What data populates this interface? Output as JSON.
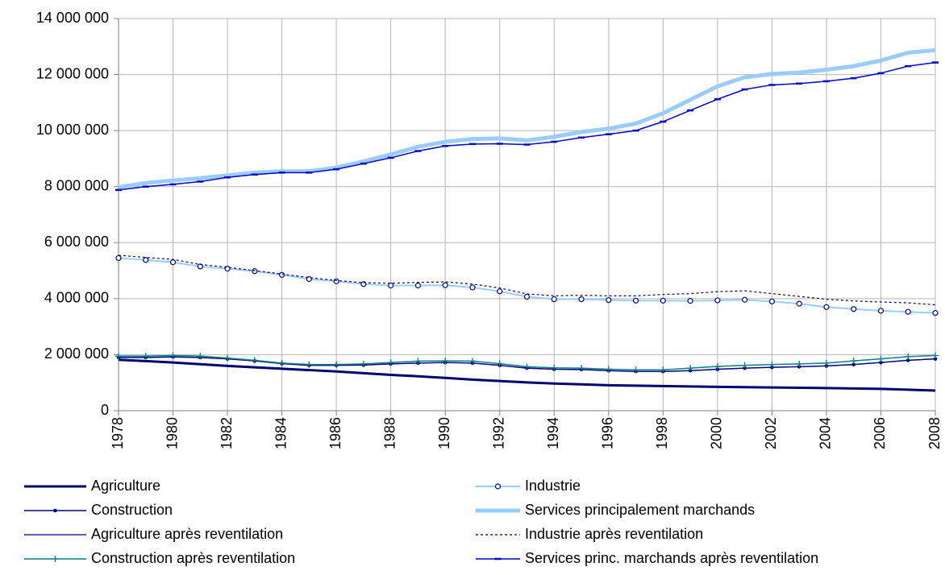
{
  "chart_data": {
    "type": "line",
    "x": [
      1978,
      1979,
      1980,
      1981,
      1982,
      1983,
      1984,
      1985,
      1986,
      1987,
      1988,
      1989,
      1990,
      1991,
      1992,
      1993,
      1994,
      1995,
      1996,
      1997,
      1998,
      1999,
      2000,
      2001,
      2002,
      2003,
      2004,
      2005,
      2006,
      2007,
      2008
    ],
    "xlim": [
      1978,
      2008
    ],
    "xticks": [
      1978,
      1980,
      1982,
      1984,
      1986,
      1988,
      1990,
      1992,
      1994,
      1996,
      1998,
      2000,
      2002,
      2004,
      2006,
      2008
    ],
    "ylim": [
      0,
      14000000
    ],
    "yticks": [
      0,
      {
        "value": 2000000,
        "label": "2 000 000"
      },
      {
        "value": 4000000,
        "label": "4 000 000"
      },
      {
        "value": 6000000,
        "label": "6 000 000"
      },
      {
        "value": 8000000,
        "label": "8 000 000"
      },
      {
        "value": 10000000,
        "label": "10 000 000"
      },
      {
        "value": 12000000,
        "label": "12 000 000"
      },
      {
        "value": 14000000,
        "label": "14 000 000"
      }
    ],
    "grid": true,
    "legend": "bottom",
    "series": [
      {
        "name": "Agriculture",
        "color": "#000066",
        "line_width": 3,
        "marker": "none",
        "dash": "solid",
        "values": [
          1820000,
          1770000,
          1720000,
          1660000,
          1600000,
          1550000,
          1500000,
          1450000,
          1400000,
          1340000,
          1280000,
          1230000,
          1170000,
          1110000,
          1060000,
          1010000,
          970000,
          940000,
          910000,
          895000,
          880000,
          865000,
          850000,
          840000,
          830000,
          820000,
          810000,
          795000,
          780000,
          750000,
          720000
        ]
      },
      {
        "name": "Industrie",
        "color": "#99ccff",
        "line_width": 2,
        "marker": "circle",
        "dash": "solid",
        "values": [
          5450000,
          5380000,
          5300000,
          5150000,
          5070000,
          4980000,
          4850000,
          4700000,
          4620000,
          4520000,
          4470000,
          4470000,
          4480000,
          4400000,
          4260000,
          4070000,
          3980000,
          3980000,
          3950000,
          3930000,
          3930000,
          3920000,
          3940000,
          3960000,
          3900000,
          3820000,
          3700000,
          3630000,
          3570000,
          3530000,
          3490000
        ]
      },
      {
        "name": "Construction",
        "color": "#000080",
        "line_width": 1.5,
        "marker": "dot",
        "dash": "solid",
        "values": [
          1900000,
          1900000,
          1920000,
          1900000,
          1850000,
          1780000,
          1680000,
          1620000,
          1620000,
          1630000,
          1670000,
          1700000,
          1720000,
          1700000,
          1620000,
          1520000,
          1480000,
          1470000,
          1430000,
          1400000,
          1400000,
          1430000,
          1480000,
          1520000,
          1550000,
          1570000,
          1600000,
          1650000,
          1720000,
          1800000,
          1850000
        ]
      },
      {
        "name": "Services principalement marchands",
        "color": "#99ccff",
        "line_width": 5,
        "marker": "none",
        "dash": "solid",
        "values": [
          7980000,
          8130000,
          8220000,
          8300000,
          8400000,
          8500000,
          8550000,
          8550000,
          8680000,
          8900000,
          9150000,
          9420000,
          9600000,
          9700000,
          9720000,
          9650000,
          9780000,
          9950000,
          10070000,
          10250000,
          10620000,
          11100000,
          11580000,
          11900000,
          12020000,
          12070000,
          12170000,
          12300000,
          12500000,
          12780000,
          12870000
        ]
      },
      {
        "name": "Agriculture après reventilation",
        "color": "#000080",
        "line_width": 1.2,
        "marker": "none",
        "dash": "solid",
        "values": [
          1840000,
          1790000,
          1740000,
          1680000,
          1620000,
          1570000,
          1520000,
          1460000,
          1410000,
          1350000,
          1290000,
          1240000,
          1180000,
          1120000,
          1070000,
          1020000,
          980000,
          950000,
          920000,
          900000,
          885000,
          870000,
          855000,
          845000,
          835000,
          825000,
          815000,
          800000,
          785000,
          755000,
          725000
        ]
      },
      {
        "name": "Industrie après reventilation",
        "color": "#000080",
        "line_width": 1.2,
        "marker": "none",
        "dash": "dot",
        "values": [
          5550000,
          5470000,
          5400000,
          5220000,
          5120000,
          5000000,
          4880000,
          4750000,
          4650000,
          4570000,
          4550000,
          4580000,
          4600000,
          4520000,
          4380000,
          4170000,
          4100000,
          4120000,
          4100000,
          4100000,
          4150000,
          4180000,
          4250000,
          4280000,
          4180000,
          4080000,
          3980000,
          3920000,
          3880000,
          3850000,
          3780000
        ]
      },
      {
        "name": "Construction après reventilation",
        "color": "#008080",
        "line_width": 1.5,
        "marker": "plus",
        "dash": "solid",
        "values": [
          1950000,
          1950000,
          1970000,
          1950000,
          1880000,
          1800000,
          1700000,
          1650000,
          1650000,
          1670000,
          1720000,
          1770000,
          1780000,
          1770000,
          1680000,
          1570000,
          1530000,
          1520000,
          1480000,
          1460000,
          1460000,
          1520000,
          1580000,
          1620000,
          1650000,
          1670000,
          1700000,
          1780000,
          1850000,
          1930000,
          1970000
        ]
      },
      {
        "name": "Services princ. marchands après reventilation",
        "color": "#0000cc",
        "line_width": 1.5,
        "marker": "dash",
        "dash": "solid",
        "values": [
          7880000,
          8000000,
          8080000,
          8180000,
          8330000,
          8430000,
          8500000,
          8500000,
          8620000,
          8820000,
          9030000,
          9270000,
          9450000,
          9520000,
          9530000,
          9500000,
          9600000,
          9750000,
          9870000,
          10000000,
          10320000,
          10720000,
          11120000,
          11470000,
          11630000,
          11680000,
          11760000,
          11870000,
          12050000,
          12300000,
          12430000
        ]
      }
    ]
  }
}
